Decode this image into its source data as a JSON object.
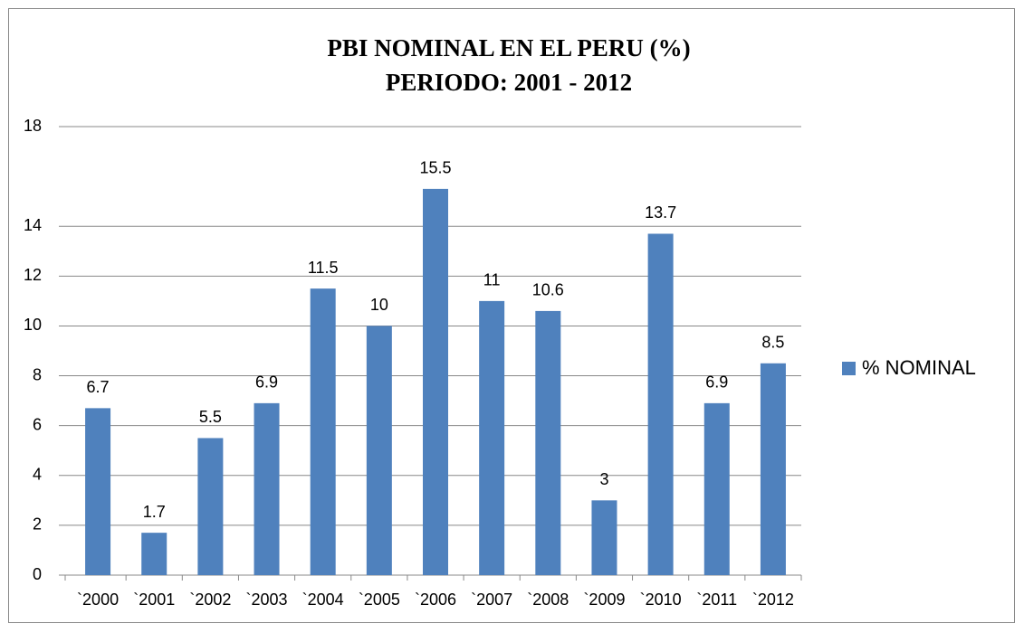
{
  "chart_data": {
    "type": "bar",
    "title": "PBI NOMINAL EN EL PERU (%)",
    "subtitle": "PERIODO: 2001 - 2012",
    "categories": [
      "`2000",
      "`2001",
      "`2002",
      "`2003",
      "`2004",
      "`2005",
      "`2006",
      "`2007",
      "`2008",
      "`2009",
      "`2010",
      "`2011",
      "`2012"
    ],
    "series": [
      {
        "name": "% NOMINAL",
        "color": "#4f81bd",
        "values": [
          6.7,
          1.7,
          5.5,
          6.9,
          11.5,
          10,
          15.5,
          11,
          10.6,
          3,
          13.7,
          6.9,
          8.5
        ]
      }
    ],
    "ylim": [
      0,
      18
    ],
    "yticks": [
      0,
      2,
      4,
      6,
      8,
      10,
      12,
      14,
      18
    ],
    "grid": true,
    "legend": "right"
  }
}
